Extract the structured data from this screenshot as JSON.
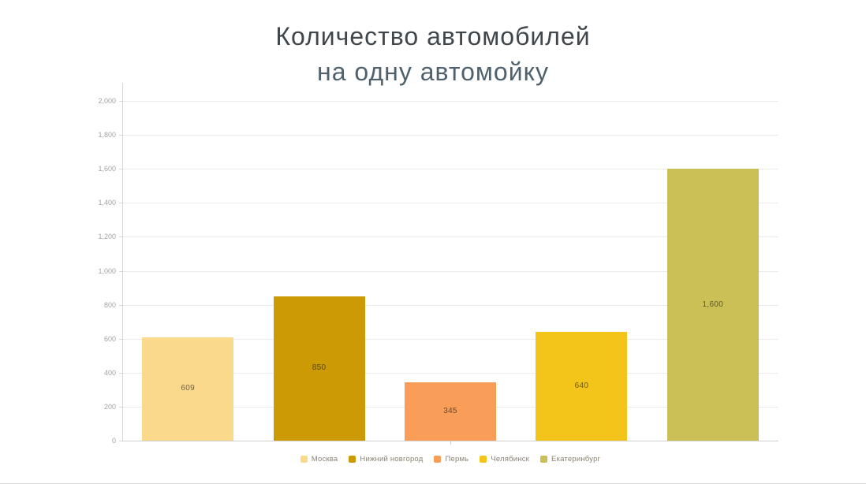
{
  "title": {
    "line1": "Количество автомобилей",
    "line2": "на одну автомойку"
  },
  "chart_data": {
    "type": "bar",
    "title": "Количество автомобилей на одну автомойку",
    "categories": [
      "Москва",
      "Нижний новгород",
      "Пермь",
      "Челябинск",
      "Екатеринбург"
    ],
    "values": [
      609,
      850,
      345,
      640,
      1600
    ],
    "display_values": [
      "609",
      "850",
      "345",
      "640",
      "1,600"
    ],
    "colors": [
      "#FAD98D",
      "#CC9A04",
      "#F99E58",
      "#F3C41A",
      "#CBC055"
    ],
    "xlabel": "",
    "ylabel": "",
    "ylim": [
      0,
      2000
    ],
    "yticks": [
      0,
      200,
      400,
      600,
      800,
      1000,
      1200,
      1400,
      1600,
      1800,
      2000
    ],
    "ytick_labels": [
      "0",
      "200",
      "400",
      "600",
      "800",
      "1,000",
      "1,200",
      "1,400",
      "1,600",
      "1,800",
      "2,000"
    ],
    "grid": true,
    "legend_position": "bottom"
  },
  "colors": {
    "title_line1": "#3f474d",
    "title_line2": "#4f616d",
    "axis_tick_text": "#a3a3a3",
    "gridline": "#ebebeb",
    "y_axis_line": "#d9d9d9",
    "x_axis_line": "#cfcfcf",
    "legend_text": "#8d8373",
    "background": "#ffffff"
  }
}
